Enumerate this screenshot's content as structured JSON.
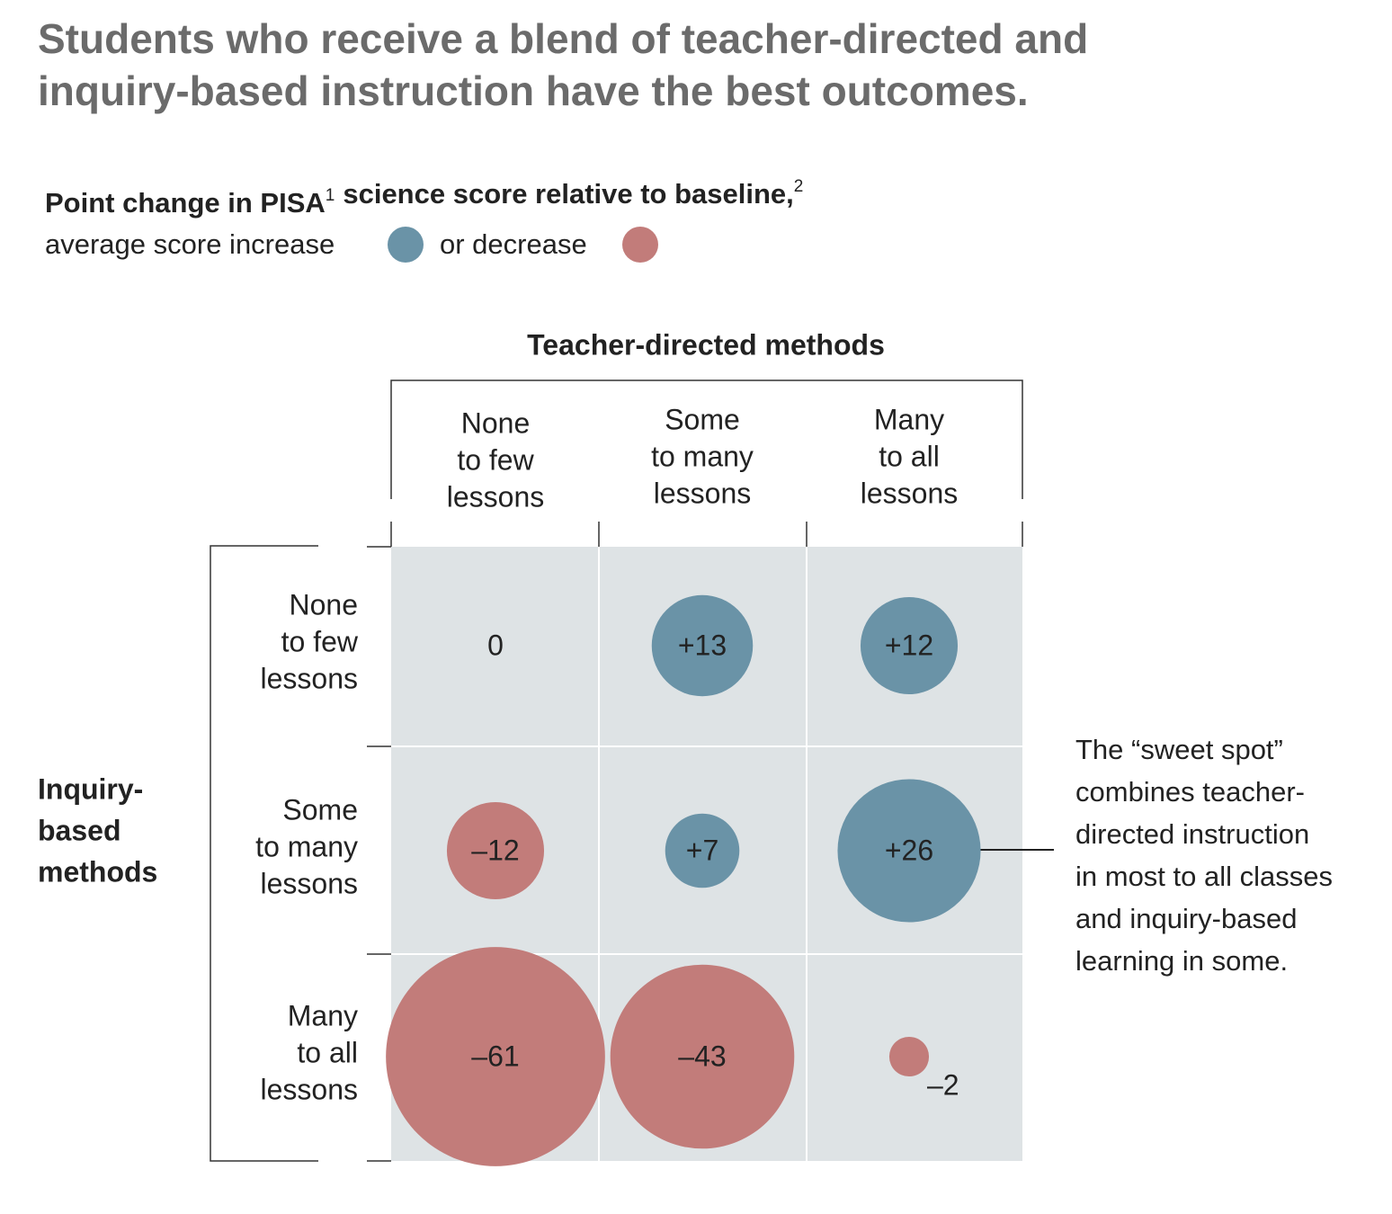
{
  "chart_data": {
    "type": "bubble",
    "title": "Students who receive a blend of teacher-directed and inquiry-based instruction have the best outcomes.",
    "subtitle": [
      {
        "text": "Point change in PISA",
        "footnote": "1"
      },
      {
        "text": "science score relative to baseline,",
        "footnote": "2"
      }
    ],
    "legend": {
      "increase": "average score increase",
      "decrease": "or decrease"
    },
    "colors": {
      "increase": "#6a93a7",
      "decrease": "#c27c7a"
    },
    "column_title": "Teacher-directed methods",
    "row_title": [
      "Inquiry-",
      "based",
      "methods"
    ],
    "columns": [
      [
        "None",
        "to few",
        "lessons"
      ],
      [
        "Some",
        "to many",
        "lessons"
      ],
      [
        "Many",
        "to all",
        "lessons"
      ]
    ],
    "rows": [
      [
        "None",
        "to few",
        "lessons"
      ],
      [
        "Some",
        "to many",
        "lessons"
      ],
      [
        "Many",
        "to all",
        "lessons"
      ]
    ],
    "values": [
      [
        0,
        13,
        12
      ],
      [
        -12,
        7,
        26
      ],
      [
        -61,
        -43,
        -2
      ]
    ],
    "value_labels": [
      [
        "0",
        "+13",
        "+12"
      ],
      [
        "–12",
        "+7",
        "+26"
      ],
      [
        "–61",
        "–43",
        "–2"
      ]
    ],
    "annotation": [
      "The “sweet spot”",
      "combines teacher-",
      "directed instruction",
      "in most to all classes",
      "and inquiry-based",
      "learning in some."
    ]
  }
}
